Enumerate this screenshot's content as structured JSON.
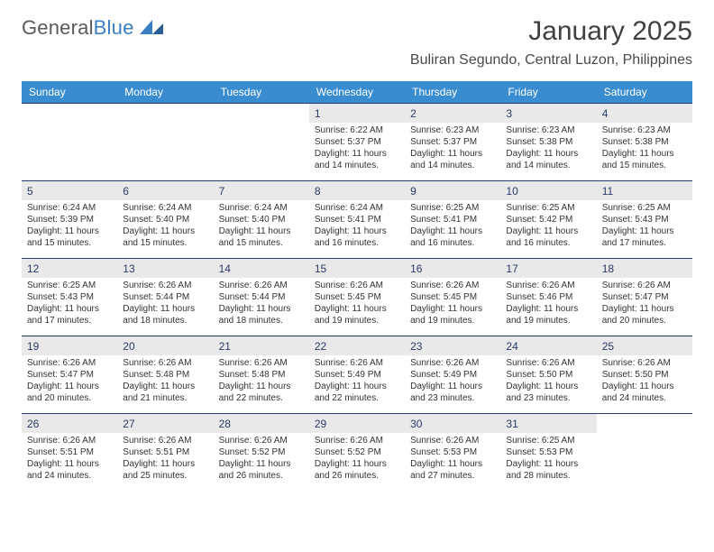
{
  "brand": {
    "text1": "General",
    "text2": "Blue"
  },
  "title": "January 2025",
  "location": "Buliran Segundo, Central Luzon, Philippines",
  "colors": {
    "header_bg": "#3a8cd0",
    "header_fg": "#ffffff",
    "daynum_bg": "#e9e9e9",
    "daynum_fg": "#2a3a66",
    "row_border": "#2a3a66",
    "logo_gray": "#5a5a5a",
    "logo_blue": "#3a7fc4"
  },
  "weekdays": [
    "Sunday",
    "Monday",
    "Tuesday",
    "Wednesday",
    "Thursday",
    "Friday",
    "Saturday"
  ],
  "weeks": [
    [
      null,
      null,
      null,
      {
        "n": "1",
        "sr": "6:22 AM",
        "ss": "5:37 PM",
        "dl": "11 hours and 14 minutes."
      },
      {
        "n": "2",
        "sr": "6:23 AM",
        "ss": "5:37 PM",
        "dl": "11 hours and 14 minutes."
      },
      {
        "n": "3",
        "sr": "6:23 AM",
        "ss": "5:38 PM",
        "dl": "11 hours and 14 minutes."
      },
      {
        "n": "4",
        "sr": "6:23 AM",
        "ss": "5:38 PM",
        "dl": "11 hours and 15 minutes."
      }
    ],
    [
      {
        "n": "5",
        "sr": "6:24 AM",
        "ss": "5:39 PM",
        "dl": "11 hours and 15 minutes."
      },
      {
        "n": "6",
        "sr": "6:24 AM",
        "ss": "5:40 PM",
        "dl": "11 hours and 15 minutes."
      },
      {
        "n": "7",
        "sr": "6:24 AM",
        "ss": "5:40 PM",
        "dl": "11 hours and 15 minutes."
      },
      {
        "n": "8",
        "sr": "6:24 AM",
        "ss": "5:41 PM",
        "dl": "11 hours and 16 minutes."
      },
      {
        "n": "9",
        "sr": "6:25 AM",
        "ss": "5:41 PM",
        "dl": "11 hours and 16 minutes."
      },
      {
        "n": "10",
        "sr": "6:25 AM",
        "ss": "5:42 PM",
        "dl": "11 hours and 16 minutes."
      },
      {
        "n": "11",
        "sr": "6:25 AM",
        "ss": "5:43 PM",
        "dl": "11 hours and 17 minutes."
      }
    ],
    [
      {
        "n": "12",
        "sr": "6:25 AM",
        "ss": "5:43 PM",
        "dl": "11 hours and 17 minutes."
      },
      {
        "n": "13",
        "sr": "6:26 AM",
        "ss": "5:44 PM",
        "dl": "11 hours and 18 minutes."
      },
      {
        "n": "14",
        "sr": "6:26 AM",
        "ss": "5:44 PM",
        "dl": "11 hours and 18 minutes."
      },
      {
        "n": "15",
        "sr": "6:26 AM",
        "ss": "5:45 PM",
        "dl": "11 hours and 19 minutes."
      },
      {
        "n": "16",
        "sr": "6:26 AM",
        "ss": "5:45 PM",
        "dl": "11 hours and 19 minutes."
      },
      {
        "n": "17",
        "sr": "6:26 AM",
        "ss": "5:46 PM",
        "dl": "11 hours and 19 minutes."
      },
      {
        "n": "18",
        "sr": "6:26 AM",
        "ss": "5:47 PM",
        "dl": "11 hours and 20 minutes."
      }
    ],
    [
      {
        "n": "19",
        "sr": "6:26 AM",
        "ss": "5:47 PM",
        "dl": "11 hours and 20 minutes."
      },
      {
        "n": "20",
        "sr": "6:26 AM",
        "ss": "5:48 PM",
        "dl": "11 hours and 21 minutes."
      },
      {
        "n": "21",
        "sr": "6:26 AM",
        "ss": "5:48 PM",
        "dl": "11 hours and 22 minutes."
      },
      {
        "n": "22",
        "sr": "6:26 AM",
        "ss": "5:49 PM",
        "dl": "11 hours and 22 minutes."
      },
      {
        "n": "23",
        "sr": "6:26 AM",
        "ss": "5:49 PM",
        "dl": "11 hours and 23 minutes."
      },
      {
        "n": "24",
        "sr": "6:26 AM",
        "ss": "5:50 PM",
        "dl": "11 hours and 23 minutes."
      },
      {
        "n": "25",
        "sr": "6:26 AM",
        "ss": "5:50 PM",
        "dl": "11 hours and 24 minutes."
      }
    ],
    [
      {
        "n": "26",
        "sr": "6:26 AM",
        "ss": "5:51 PM",
        "dl": "11 hours and 24 minutes."
      },
      {
        "n": "27",
        "sr": "6:26 AM",
        "ss": "5:51 PM",
        "dl": "11 hours and 25 minutes."
      },
      {
        "n": "28",
        "sr": "6:26 AM",
        "ss": "5:52 PM",
        "dl": "11 hours and 26 minutes."
      },
      {
        "n": "29",
        "sr": "6:26 AM",
        "ss": "5:52 PM",
        "dl": "11 hours and 26 minutes."
      },
      {
        "n": "30",
        "sr": "6:26 AM",
        "ss": "5:53 PM",
        "dl": "11 hours and 27 minutes."
      },
      {
        "n": "31",
        "sr": "6:25 AM",
        "ss": "5:53 PM",
        "dl": "11 hours and 28 minutes."
      },
      null
    ]
  ],
  "labels": {
    "sunrise": "Sunrise:",
    "sunset": "Sunset:",
    "daylight": "Daylight:"
  }
}
